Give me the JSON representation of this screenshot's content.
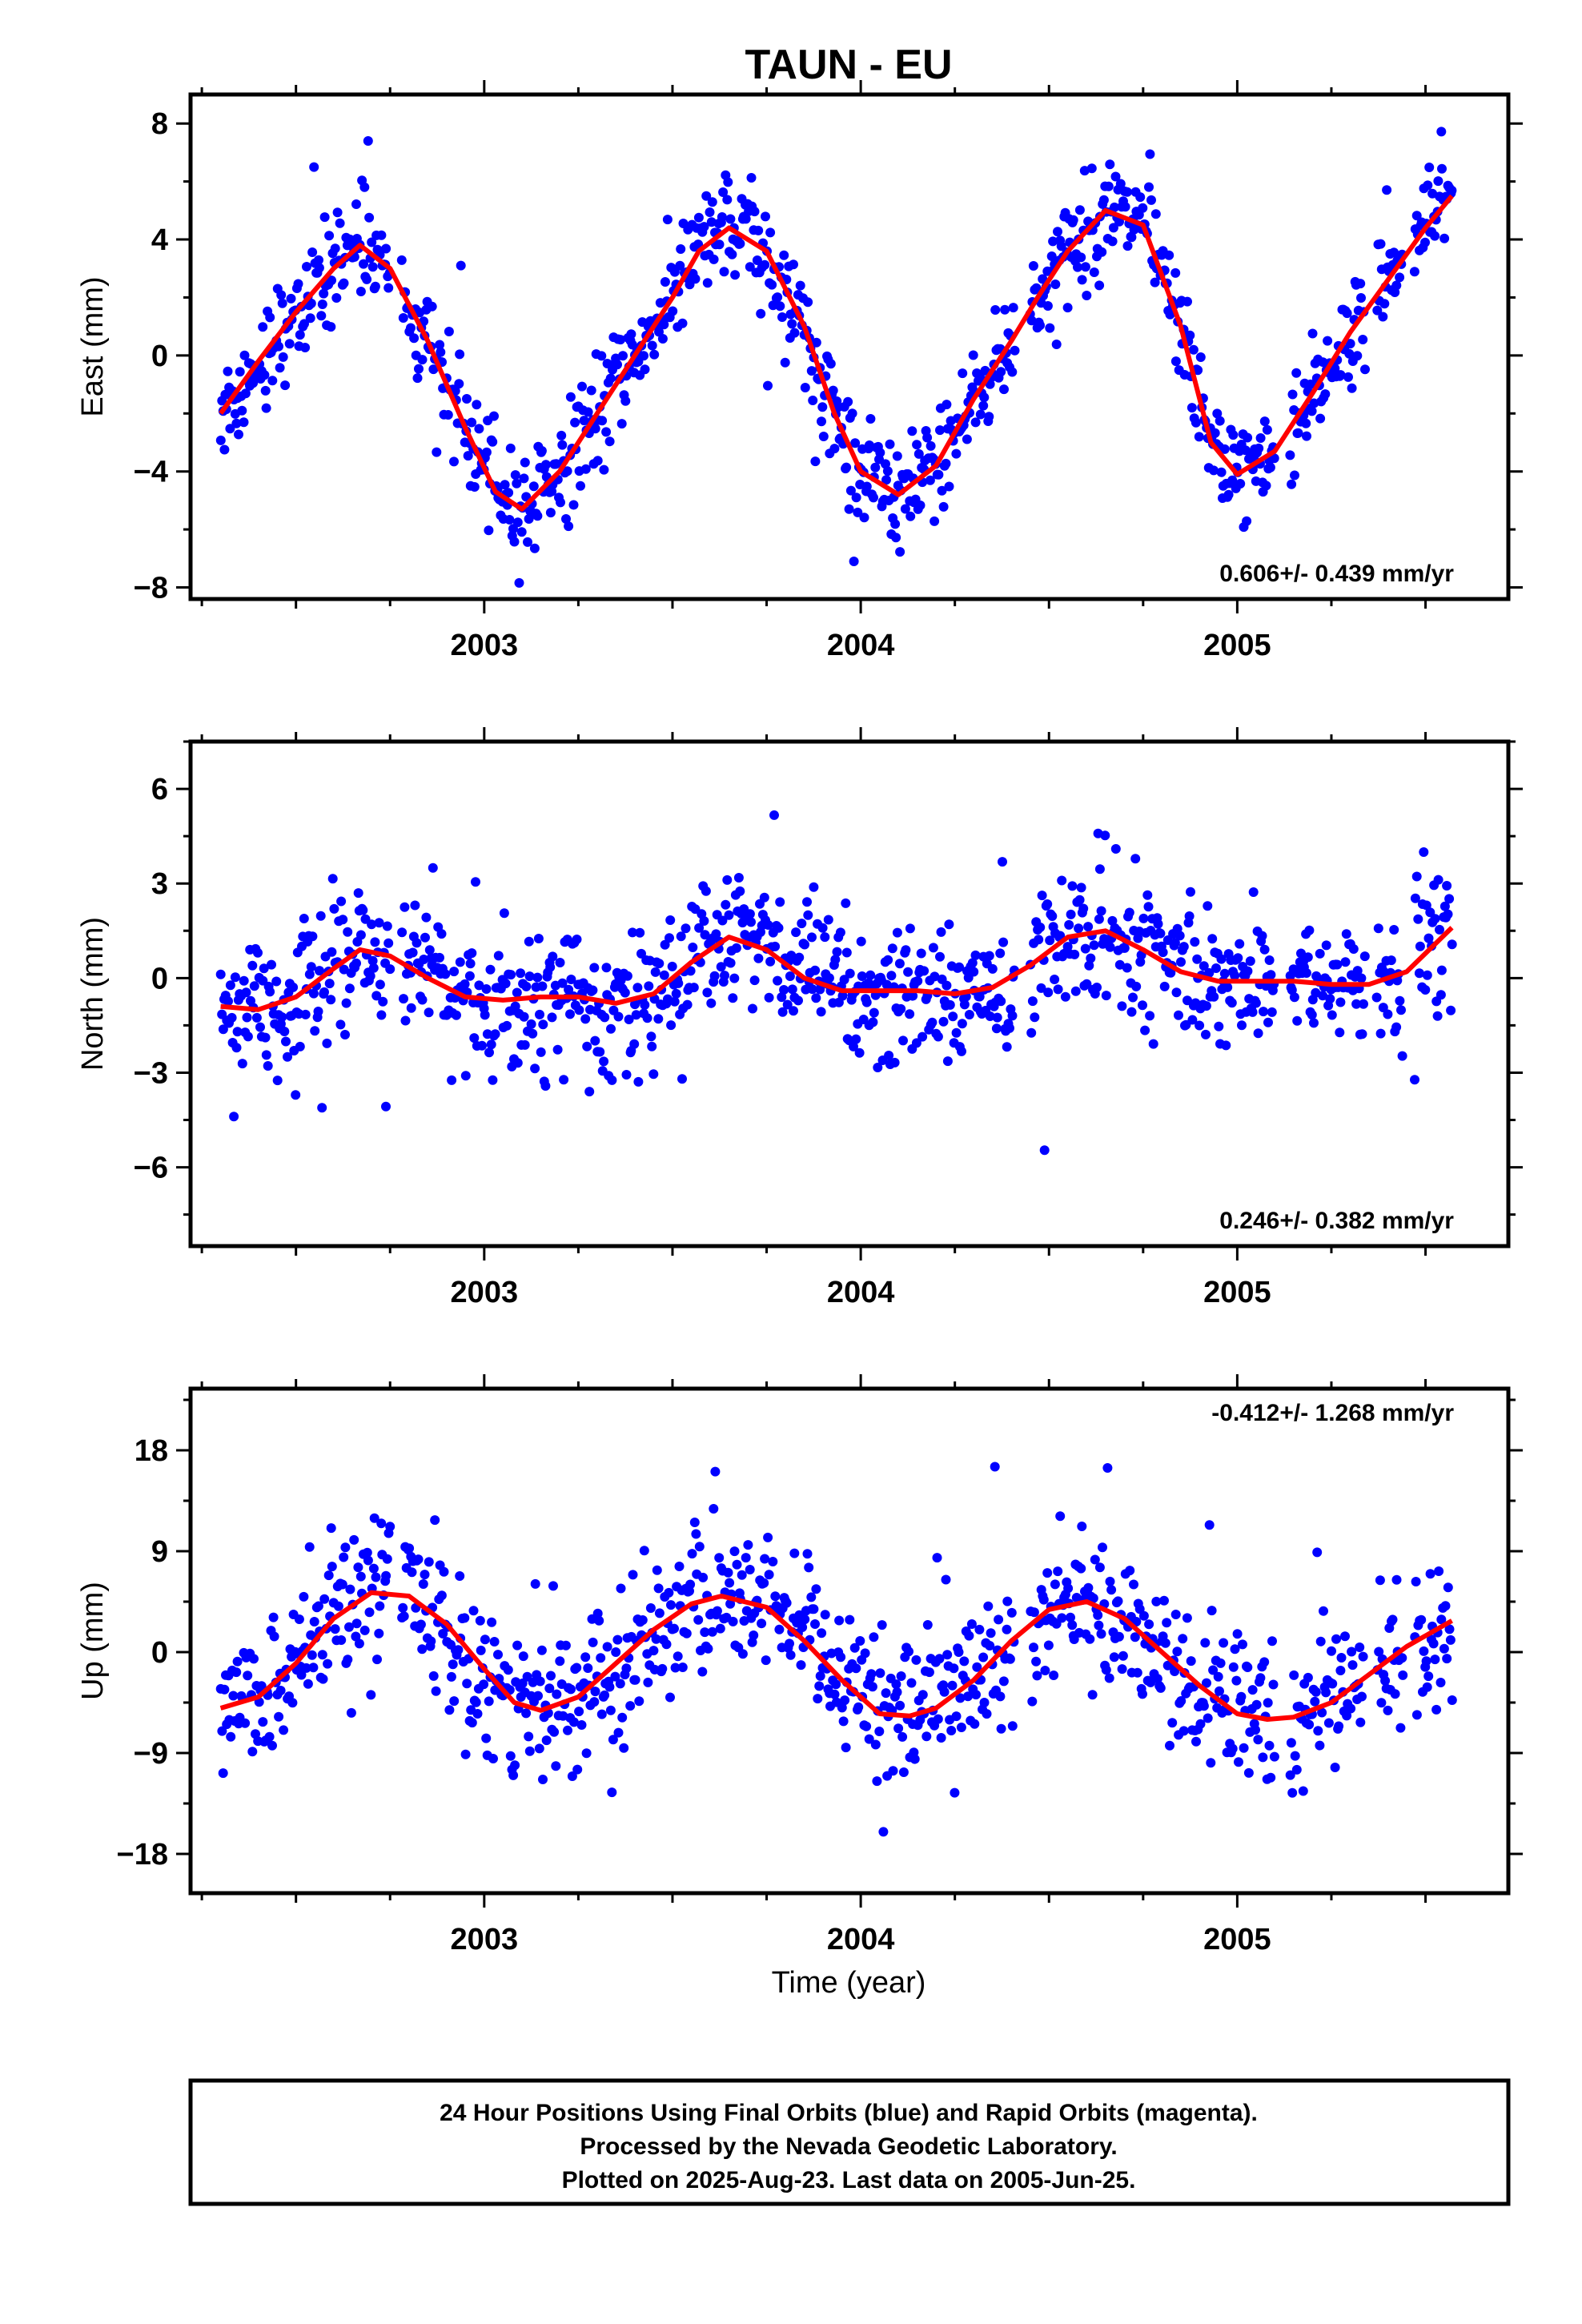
{
  "title": "TAUN - EU",
  "xlabel": "Time (year)",
  "caption": {
    "line1": "24 Hour Positions Using Final Orbits (blue) and Rapid Orbits (magenta).",
    "line2": "Processed by the Nevada Geodetic Laboratory.",
    "line3": "Plotted on 2025-Aug-23. Last data on 2005-Jun-25."
  },
  "colors": {
    "points": "#0000ff",
    "fit": "#ff0000",
    "frame": "#000000"
  },
  "chart_data": [
    {
      "type": "scatter",
      "component": "east",
      "ylabel": "East (mm)",
      "rate_label": "0.606+/- 0.439 mm/yr",
      "rate_position": "bottom-right",
      "xlim": [
        2002.22,
        2005.72
      ],
      "ylim": [
        -8.4,
        9.0
      ],
      "yticks": [
        -8,
        -4,
        0,
        4,
        8
      ],
      "ytick_labels": [
        "−8",
        "−4",
        "0",
        "4",
        "8"
      ],
      "xticks": [
        2003,
        2004,
        2005
      ],
      "xtick_labels": [
        "2003",
        "2004",
        "2005"
      ],
      "fit_x": [
        2002.3,
        2002.4,
        2002.5,
        2002.6,
        2002.67,
        2002.75,
        2002.85,
        2002.95,
        2003.03,
        2003.1,
        2003.2,
        2003.3,
        2003.4,
        2003.5,
        2003.57,
        2003.65,
        2003.75,
        2003.85,
        2003.93,
        2004.0,
        2004.1,
        2004.2,
        2004.3,
        2004.4,
        2004.47,
        2004.55,
        2004.65,
        2004.75,
        2004.85,
        2004.93,
        2005.0,
        2005.1,
        2005.2,
        2005.3,
        2005.4,
        2005.5,
        2005.57
      ],
      "fit_y": [
        -2.0,
        -0.2,
        1.5,
        3.0,
        3.8,
        3.0,
        0.5,
        -2.5,
        -4.7,
        -5.3,
        -4.0,
        -2.0,
        0.0,
        2.0,
        3.6,
        4.4,
        3.6,
        1.0,
        -2.0,
        -4.0,
        -4.8,
        -3.8,
        -1.5,
        0.5,
        2.0,
        3.6,
        5.0,
        4.5,
        1.0,
        -3.0,
        -4.1,
        -3.3,
        -1.3,
        0.8,
        2.6,
        4.4,
        5.5
      ],
      "points_source": "scatter of daily positions scattered about the fit",
      "scatter_sd": 0.9,
      "n_points": 1020
    },
    {
      "type": "scatter",
      "component": "north",
      "ylabel": "North (mm)",
      "rate_label": "0.246+/- 0.382 mm/yr",
      "rate_position": "bottom-right",
      "xlim": [
        2002.22,
        2005.72
      ],
      "ylim": [
        -8.5,
        7.5
      ],
      "yticks": [
        -6,
        -3,
        0,
        3,
        6
      ],
      "ytick_labels": [
        "−6",
        "−3",
        "0",
        "3",
        "6"
      ],
      "xticks": [
        2003,
        2004,
        2005
      ],
      "xtick_labels": [
        "2003",
        "2004",
        "2005"
      ],
      "fit_x": [
        2002.3,
        2002.4,
        2002.5,
        2002.6,
        2002.67,
        2002.75,
        2002.85,
        2002.95,
        2003.05,
        2003.15,
        2003.25,
        2003.35,
        2003.45,
        2003.55,
        2003.65,
        2003.75,
        2003.85,
        2003.95,
        2004.05,
        2004.15,
        2004.25,
        2004.35,
        2004.45,
        2004.55,
        2004.65,
        2004.75,
        2004.85,
        2004.95,
        2005.05,
        2005.15,
        2005.25,
        2005.35,
        2005.45,
        2005.57
      ],
      "fit_y": [
        -0.9,
        -1.0,
        -0.6,
        0.3,
        0.9,
        0.7,
        0.0,
        -0.6,
        -0.7,
        -0.6,
        -0.6,
        -0.8,
        -0.5,
        0.5,
        1.3,
        0.9,
        0.0,
        -0.4,
        -0.4,
        -0.4,
        -0.5,
        -0.3,
        0.4,
        1.3,
        1.5,
        0.9,
        0.2,
        -0.1,
        -0.1,
        -0.1,
        -0.2,
        -0.2,
        0.2,
        1.6
      ],
      "points_source": "scatter of daily positions scattered about the fit",
      "scatter_sd": 1.1,
      "n_points": 1020
    },
    {
      "type": "scatter",
      "component": "up",
      "ylabel": "Up (mm)",
      "rate_label": "-0.412+/- 1.268 mm/yr",
      "rate_position": "top-right",
      "xlim": [
        2002.22,
        2005.72
      ],
      "ylim": [
        -21.5,
        23.5
      ],
      "yticks": [
        -18,
        -9,
        0,
        9,
        18
      ],
      "ytick_labels": [
        "−18",
        "−9",
        "0",
        "9",
        "18"
      ],
      "xticks": [
        2003,
        2004,
        2005
      ],
      "xtick_labels": [
        "2003",
        "2004",
        "2005"
      ],
      "fit_x": [
        2002.3,
        2002.4,
        2002.5,
        2002.6,
        2002.7,
        2002.8,
        2002.9,
        2003.0,
        2003.08,
        2003.15,
        2003.25,
        2003.35,
        2003.45,
        2003.55,
        2003.63,
        2003.75,
        2003.85,
        2003.95,
        2004.05,
        2004.13,
        2004.2,
        2004.3,
        2004.4,
        2004.5,
        2004.6,
        2004.7,
        2004.8,
        2004.9,
        2005.0,
        2005.08,
        2005.15,
        2005.25,
        2005.35,
        2005.45,
        2005.57
      ],
      "fit_y": [
        -5.0,
        -4.0,
        -1.0,
        3.0,
        5.3,
        5.0,
        2.5,
        -1.5,
        -4.5,
        -5.2,
        -4.0,
        -1.0,
        2.0,
        4.3,
        5.0,
        4.0,
        1.0,
        -2.5,
        -5.5,
        -5.7,
        -5.0,
        -2.5,
        1.0,
        3.8,
        4.5,
        3.0,
        0.0,
        -3.0,
        -5.5,
        -6.0,
        -5.8,
        -4.5,
        -2.0,
        0.5,
        2.8
      ],
      "points_source": "scatter of daily positions scattered about the fit",
      "scatter_sd": 3.4,
      "n_points": 960
    }
  ]
}
